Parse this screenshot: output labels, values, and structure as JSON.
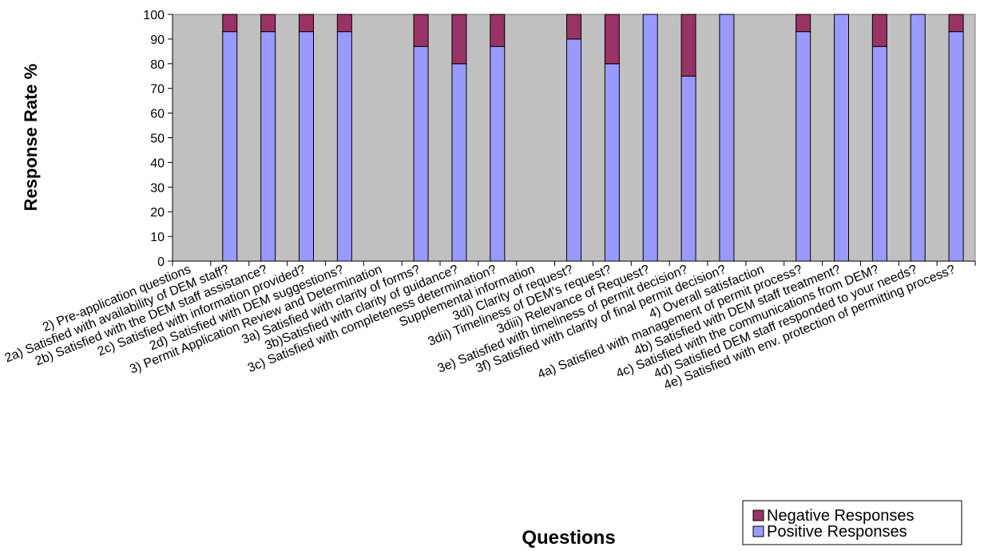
{
  "chart_data": {
    "type": "bar",
    "stacked": true,
    "xlabel": "Questions",
    "ylabel": "Response Rate %",
    "ylim": [
      0,
      100
    ],
    "yticks": [
      0,
      10,
      20,
      30,
      40,
      50,
      60,
      70,
      80,
      90,
      100
    ],
    "grid": false,
    "plot_background": "#c0c0c0",
    "legend_position": "bottom-right",
    "categories": [
      "2) Pre-application questions",
      "2a) Satisfied with availability of DEM staff?",
      "2b) Satisfied with the DEM staff assistance?",
      "2c) Satisfied with information provided?",
      "2d) Satisfied with DEM suggestions?",
      "3) Permit Application Review and Determination",
      "3a) Satisfied with clarity of forms?",
      "3b)Satisfied with clarity of guidance?",
      "3c) Satisfied with completeness determination?",
      "Supplemental information",
      "3di) Clarity of request?",
      "3dii) Timeliness of DEM's request?",
      "3diii) Relevance of Request?",
      "3e) Satisfied with timeliness of permit decision?",
      "3f) Satisfied with clarity of final permit decision?",
      "4) Overall satisfaction",
      "4a) Satisfied with management of permit process?",
      "4b) Satisfied with DEM staff treatment?",
      "4c) Satisfied with the communications from DEM?",
      "4d) Satisfied DEM staff responded to your needs?",
      "4e) Satisfied with env. protection of permitting process?"
    ],
    "series": [
      {
        "name": "Positive Responses",
        "color": "#9999ff",
        "values": [
          null,
          93,
          93,
          93,
          93,
          null,
          87,
          80,
          87,
          null,
          90,
          80,
          100,
          75,
          100,
          null,
          93,
          100,
          87,
          100,
          93
        ]
      },
      {
        "name": "Negative Responses",
        "color": "#993366",
        "values": [
          null,
          7,
          7,
          7,
          7,
          null,
          13,
          20,
          13,
          null,
          10,
          20,
          0,
          25,
          0,
          null,
          7,
          0,
          13,
          0,
          7
        ]
      }
    ]
  }
}
